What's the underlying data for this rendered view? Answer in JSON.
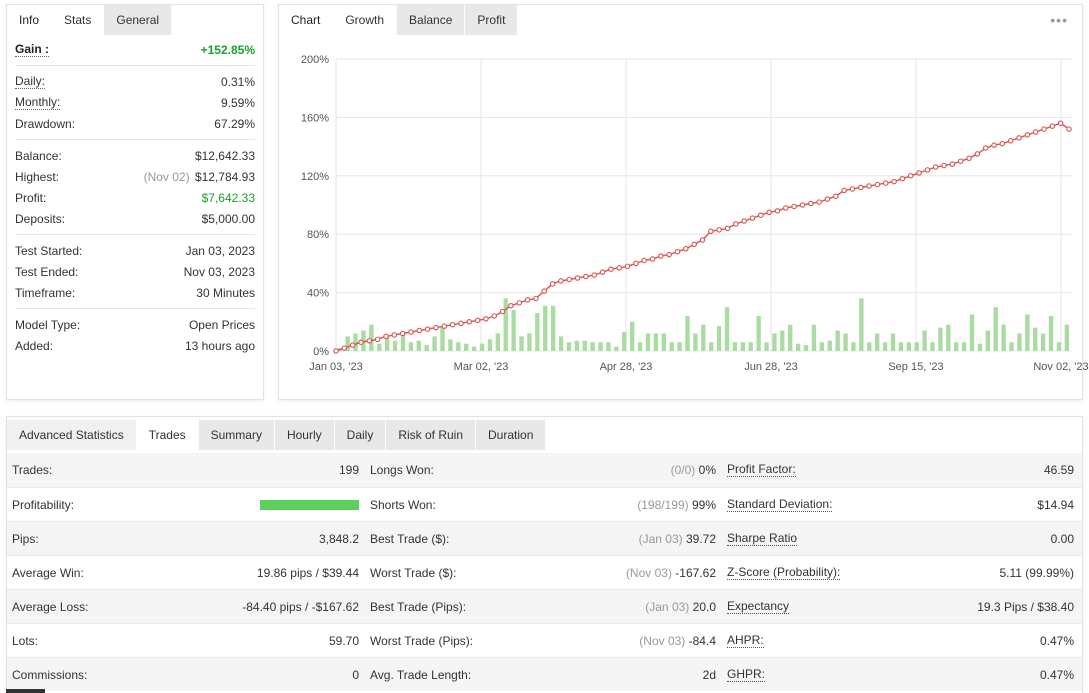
{
  "info": {
    "tabs": [
      {
        "label": "Info",
        "state": "title"
      },
      {
        "label": "Stats",
        "state": "active"
      },
      {
        "label": "General",
        "state": "inactive"
      }
    ],
    "gain": {
      "label": "Gain :",
      "value": "+152.85%"
    },
    "daily": {
      "label": "Daily:",
      "value": "0.31%"
    },
    "monthly": {
      "label": "Monthly:",
      "value": "9.59%"
    },
    "drawdown": {
      "label": "Drawdown:",
      "value": "67.29%"
    },
    "balance": {
      "label": "Balance:",
      "value": "$12,642.33"
    },
    "highest": {
      "label": "Highest:",
      "date": "(Nov 02)",
      "value": "$12,784.93"
    },
    "profit": {
      "label": "Profit:",
      "value": "$7,642.33"
    },
    "deposits": {
      "label": "Deposits:",
      "value": "$5,000.00"
    },
    "test_started": {
      "label": "Test Started:",
      "value": "Jan 03, 2023"
    },
    "test_ended": {
      "label": "Test Ended:",
      "value": "Nov 03, 2023"
    },
    "timeframe": {
      "label": "Timeframe:",
      "value": "30 Minutes"
    },
    "model_type": {
      "label": "Model Type:",
      "value": "Open Prices"
    },
    "added": {
      "label": "Added:",
      "value": "13 hours ago"
    }
  },
  "chart_panel": {
    "tabs": [
      {
        "label": "Chart",
        "state": "title"
      },
      {
        "label": "Growth",
        "state": "active"
      },
      {
        "label": "Balance",
        "state": "inactive"
      },
      {
        "label": "Profit",
        "state": "inactive"
      }
    ],
    "menu_icon": "ellipsis-icon"
  },
  "chart_data": {
    "type": "line",
    "y_ticks": [
      "0%",
      "40%",
      "80%",
      "120%",
      "160%",
      "200%"
    ],
    "x_ticks": [
      "Jan 03, '23",
      "Mar 02, '23",
      "Apr 28, '23",
      "Jun 28, '23",
      "Sep 15, '23",
      "Nov 02, '23"
    ],
    "ylim": [
      0,
      200
    ],
    "colors": {
      "line": "#d9534f",
      "bars": "#a8dca0"
    },
    "growth": [
      0,
      2,
      4,
      6,
      7,
      8,
      10,
      11,
      12,
      13,
      14,
      15,
      16,
      17,
      18,
      19,
      20,
      21,
      22,
      24,
      27,
      31,
      33,
      35,
      36,
      41,
      46,
      48,
      49,
      50,
      51,
      52,
      54,
      56,
      57,
      58,
      60,
      62,
      63,
      65,
      66,
      68,
      70,
      73,
      76,
      82,
      83,
      84,
      87,
      89,
      91,
      93,
      95,
      96,
      98,
      99,
      100,
      101,
      102,
      104,
      106,
      110,
      111,
      112,
      113,
      114,
      115,
      116,
      118,
      120,
      122,
      124,
      126,
      127,
      128,
      130,
      132,
      135,
      139,
      141,
      142,
      144,
      146,
      148,
      150,
      152,
      154,
      156,
      152
    ],
    "bars": [
      2,
      10,
      12,
      14,
      18,
      5,
      10,
      7,
      12,
      6,
      7,
      4,
      10,
      16,
      8,
      6,
      5,
      3,
      5,
      8,
      12,
      36,
      28,
      10,
      12,
      26,
      31,
      31,
      10,
      6,
      7,
      7,
      6,
      6,
      6,
      3,
      13,
      20,
      6,
      12,
      12,
      12,
      6,
      6,
      24,
      12,
      18,
      6,
      17,
      30,
      6,
      6,
      6,
      24,
      6,
      12,
      14,
      18,
      5,
      4,
      18,
      6,
      7,
      14,
      12,
      6,
      36,
      6,
      12,
      6,
      12,
      6,
      6,
      6,
      14,
      6,
      16,
      18,
      6,
      6,
      25,
      5,
      14,
      30,
      18,
      6,
      12,
      25,
      16,
      12,
      24,
      6,
      18
    ]
  },
  "advanced": {
    "tabs": [
      {
        "label": "Advanced Statistics",
        "state": "title"
      },
      {
        "label": "Trades",
        "state": "active"
      },
      {
        "label": "Summary",
        "state": "inactive"
      },
      {
        "label": "Hourly",
        "state": "inactive"
      },
      {
        "label": "Daily",
        "state": "inactive"
      },
      {
        "label": "Risk of Ruin",
        "state": "inactive"
      },
      {
        "label": "Duration",
        "state": "inactive"
      }
    ],
    "rows": [
      {
        "c1l": "Trades:",
        "c1v": "199",
        "c2l": "Longs Won:",
        "c2m": "(0/0)",
        "c2v": "0%",
        "c3l": "Profit Factor:",
        "c3v": "46.59"
      },
      {
        "c1l": "Profitability:",
        "c1v": "",
        "c2l": "Shorts Won:",
        "c2m": "(198/199)",
        "c2v": "99%",
        "c3l": "Standard Deviation:",
        "c3v": "$14.94"
      },
      {
        "c1l": "Pips:",
        "c1v": "3,848.2",
        "c2l": "Best Trade ($):",
        "c2m": "(Jan 03)",
        "c2v": "39.72",
        "c3l": "Sharpe Ratio",
        "c3v": "0.00"
      },
      {
        "c1l": "Average Win:",
        "c1v": "19.86 pips / $39.44",
        "c2l": "Worst Trade ($):",
        "c2m": "(Nov 03)",
        "c2v": "-167.62",
        "c3l": "Z-Score (Probability):",
        "c3v": "5.11 (99.99%)"
      },
      {
        "c1l": "Average Loss:",
        "c1v": "-84.40 pips / -$167.62",
        "c2l": "Best Trade (Pips):",
        "c2m": "(Jan 03)",
        "c2v": "20.0",
        "c3l": "Expectancy",
        "c3v": "19.3 Pips / $38.40"
      },
      {
        "c1l": "Lots:",
        "c1v": "59.70",
        "c2l": "Worst Trade (Pips):",
        "c2m": "(Nov 03)",
        "c2v": "-84.4",
        "c3l": "AHPR:",
        "c3v": "0.47%"
      },
      {
        "c1l": "Commissions:",
        "c1v": "0",
        "c2l": "Avg. Trade Length:",
        "c2m": "",
        "c2v": "2d",
        "c3l": "GHPR:",
        "c3v": "0.47%"
      }
    ],
    "profitability_fraction": 0.99
  }
}
